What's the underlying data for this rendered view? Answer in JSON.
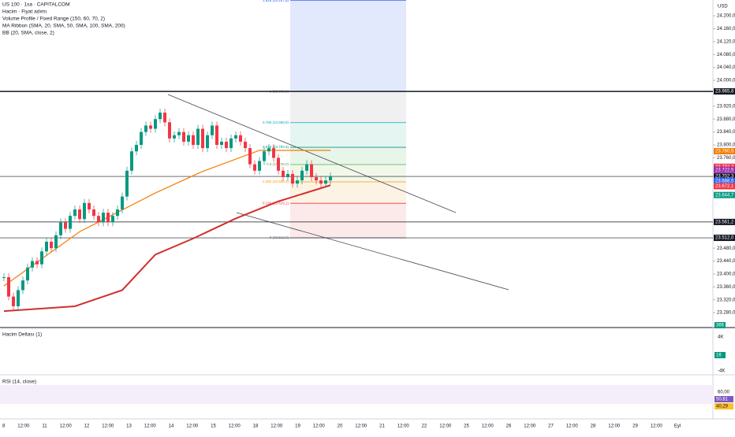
{
  "header": {
    "symbol": "US 100 · 1sa · CAPITALCOM",
    "indicators": [
      "Hacim · Fiyat adımı",
      "Volume Profile / Fixed Range (150, 60, 70, 2)",
      "MA Ribbon (SMA, 20, SMA, 50, SMA, 100, SMA, 200)",
      "BB (20, SMA, close, 2)"
    ],
    "currency": "USD"
  },
  "chart_data": {
    "type": "candlestick",
    "closes": [
      23390,
      23330,
      23300,
      23350,
      23380,
      23420,
      23440,
      23430,
      23470,
      23500,
      23480,
      23520,
      23560,
      23540,
      23580,
      23600,
      23570,
      23620,
      23600,
      23580,
      23560,
      23590,
      23560,
      23580,
      23600,
      23640,
      23720,
      23780,
      23800,
      23840,
      23860,
      23850,
      23880,
      23900,
      23870,
      23820,
      23830,
      23840,
      23810,
      23830,
      23800,
      23850,
      23790,
      23830,
      23860,
      23800,
      23810,
      23790,
      23820,
      23830,
      23810,
      23790,
      23740,
      23720,
      23750,
      23780,
      23790,
      23760,
      23720,
      23700,
      23710,
      23680,
      23690,
      23720,
      23740,
      23700,
      23690,
      23680,
      23690,
      23702.3
    ],
    "up_color": "#089981",
    "down_color": "#f23645",
    "ma": [
      {
        "color": "#d32f2f",
        "x": [
          0,
          15,
          25,
          32,
          40,
          49,
          58,
          69
        ],
        "values": [
          23285,
          23300,
          23350,
          23460,
          23510,
          23572,
          23625,
          23675
        ]
      },
      {
        "color": "#f57c00",
        "x": [
          0,
          16,
          32,
          42,
          54,
          69
        ],
        "values": [
          23363,
          23531,
          23651,
          23718,
          23783,
          23783
        ]
      }
    ],
    "ylim": [
      23234,
      24249
    ],
    "yticks": [
      {
        "value": 24200,
        "label": "24.200,0"
      },
      {
        "value": 24160,
        "label": "24.160,0"
      },
      {
        "value": 24120,
        "label": "24.120,0"
      },
      {
        "value": 24080,
        "label": "24.080,0"
      },
      {
        "value": 24040,
        "label": "24.040,0"
      },
      {
        "value": 24000,
        "label": "24.000,0"
      },
      {
        "value": 23920,
        "label": "23.920,0"
      },
      {
        "value": 23880,
        "label": "23.880,0"
      },
      {
        "value": 23840,
        "label": "23.840,0"
      },
      {
        "value": 23800,
        "label": "23.800,0"
      },
      {
        "value": 23760,
        "label": "23.760,0"
      },
      {
        "value": 23480,
        "label": "23.480,0"
      },
      {
        "value": 23440,
        "label": "23.440,0"
      },
      {
        "value": 23400,
        "label": "23.400,0"
      },
      {
        "value": 23360,
        "label": "23.360,0"
      },
      {
        "value": 23320,
        "label": "23.320,0"
      },
      {
        "value": 23280,
        "label": "23.280,0"
      }
    ],
    "price_tags": [
      {
        "value": 23965.8,
        "label": "23.965,8",
        "color": "#131722"
      },
      {
        "value": 23780.5,
        "label": "23.780,5",
        "color": "#f57c00"
      },
      {
        "value": 23732.2,
        "label": "23.732,2",
        "color": "#f23645"
      },
      {
        "value": 23722.5,
        "label": "23.722,5",
        "color": "#9c27b0"
      },
      {
        "value": 23702.3,
        "label": "23.702,3",
        "color": "#131722"
      },
      {
        "value": 23688.5,
        "label": "23.688,5",
        "color": "#2962ff"
      },
      {
        "value": 23672.1,
        "label": "23.672,1",
        "color": "#f23645"
      },
      {
        "value": 23644.7,
        "label": "23.644,7",
        "color": "#089981"
      },
      {
        "value": 23561.2,
        "label": "23.561,2",
        "color": "#131722"
      },
      {
        "value": 23512.0,
        "label": "23.512,0",
        "color": "#131722"
      }
    ],
    "fib": [
      {
        "value": 24247.5,
        "label": "1.618 (24.247,5)",
        "color": "#2962ff",
        "fill": "#dbe4fb"
      },
      {
        "value": 23965.8,
        "label": "1 (23.965,8)",
        "color": "#787b86",
        "fill": "#ececec"
      },
      {
        "value": 23868.9,
        "label": "0.786 (23.868,9)",
        "color": "#00acc1",
        "fill": "#dff3ee"
      },
      {
        "value": 23792.6,
        "label": "0.618 (23.792,6)",
        "color": "#089981",
        "fill": "#e2f2e4"
      },
      {
        "value": 23739.0,
        "label": "0.5 (23.739,0)",
        "color": "#4caf50",
        "fill": "#eef6e4"
      },
      {
        "value": 23685.4,
        "label": "0.382 (23.685,4)",
        "color": "#ff9800",
        "fill": "#fdf0dd"
      },
      {
        "value": 23619.1,
        "label": "0.236 (23.619,1)",
        "color": "#f23645",
        "fill": "#fbe3e3"
      },
      {
        "value": 23512.0,
        "label": "0 (23.512,0)",
        "color": "#787b86",
        "fill": null
      }
    ],
    "volume_label": "366"
  },
  "time_axis": [
    "8",
    "12:00",
    "11",
    "12:00",
    "12",
    "12:00",
    "13",
    "12:00",
    "14",
    "12:00",
    "15",
    "12:00",
    "18",
    "12:00",
    "19",
    "12:00",
    "20",
    "12:00",
    "21",
    "12:00",
    "22",
    "12:00",
    "25",
    "12:00",
    "26",
    "12:00",
    "27",
    "12:00",
    "28",
    "12:00",
    "29",
    "12:00",
    "Eyl"
  ],
  "panes": {
    "delta": {
      "title": "Hacim Deltası (1)",
      "labels": [
        "4K",
        "16",
        "-4K"
      ]
    },
    "rsi": {
      "title": "RSI (14, close)",
      "labels": [
        "60,00",
        "50,81",
        "40,29"
      ]
    }
  }
}
